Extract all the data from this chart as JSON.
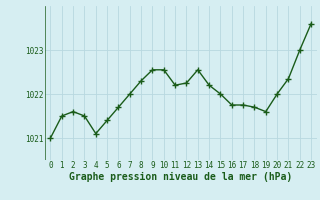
{
  "x": [
    0,
    1,
    2,
    3,
    4,
    5,
    6,
    7,
    8,
    9,
    10,
    11,
    12,
    13,
    14,
    15,
    16,
    17,
    18,
    19,
    20,
    21,
    22,
    23
  ],
  "y": [
    1021.0,
    1021.5,
    1021.6,
    1021.5,
    1021.1,
    1021.4,
    1021.7,
    1022.0,
    1022.3,
    1022.55,
    1022.55,
    1022.2,
    1022.25,
    1022.55,
    1022.2,
    1022.0,
    1021.75,
    1021.75,
    1021.7,
    1021.6,
    1022.0,
    1022.35,
    1023.0,
    1023.6
  ],
  "ylim": [
    1020.5,
    1024.0
  ],
  "yticks": [
    1021,
    1022,
    1023
  ],
  "xticks": [
    0,
    1,
    2,
    3,
    4,
    5,
    6,
    7,
    8,
    9,
    10,
    11,
    12,
    13,
    14,
    15,
    16,
    17,
    18,
    19,
    20,
    21,
    22,
    23
  ],
  "line_color": "#1a5c1a",
  "marker": "+",
  "marker_size": 4,
  "line_width": 1.0,
  "bg_color": "#d6eef2",
  "grid_color": "#b8d8e0",
  "xlabel": "Graphe pression niveau de la mer (hPa)",
  "xlabel_fontsize": 7,
  "tick_fontsize": 5.5,
  "fig_bg": "#d6eef2"
}
